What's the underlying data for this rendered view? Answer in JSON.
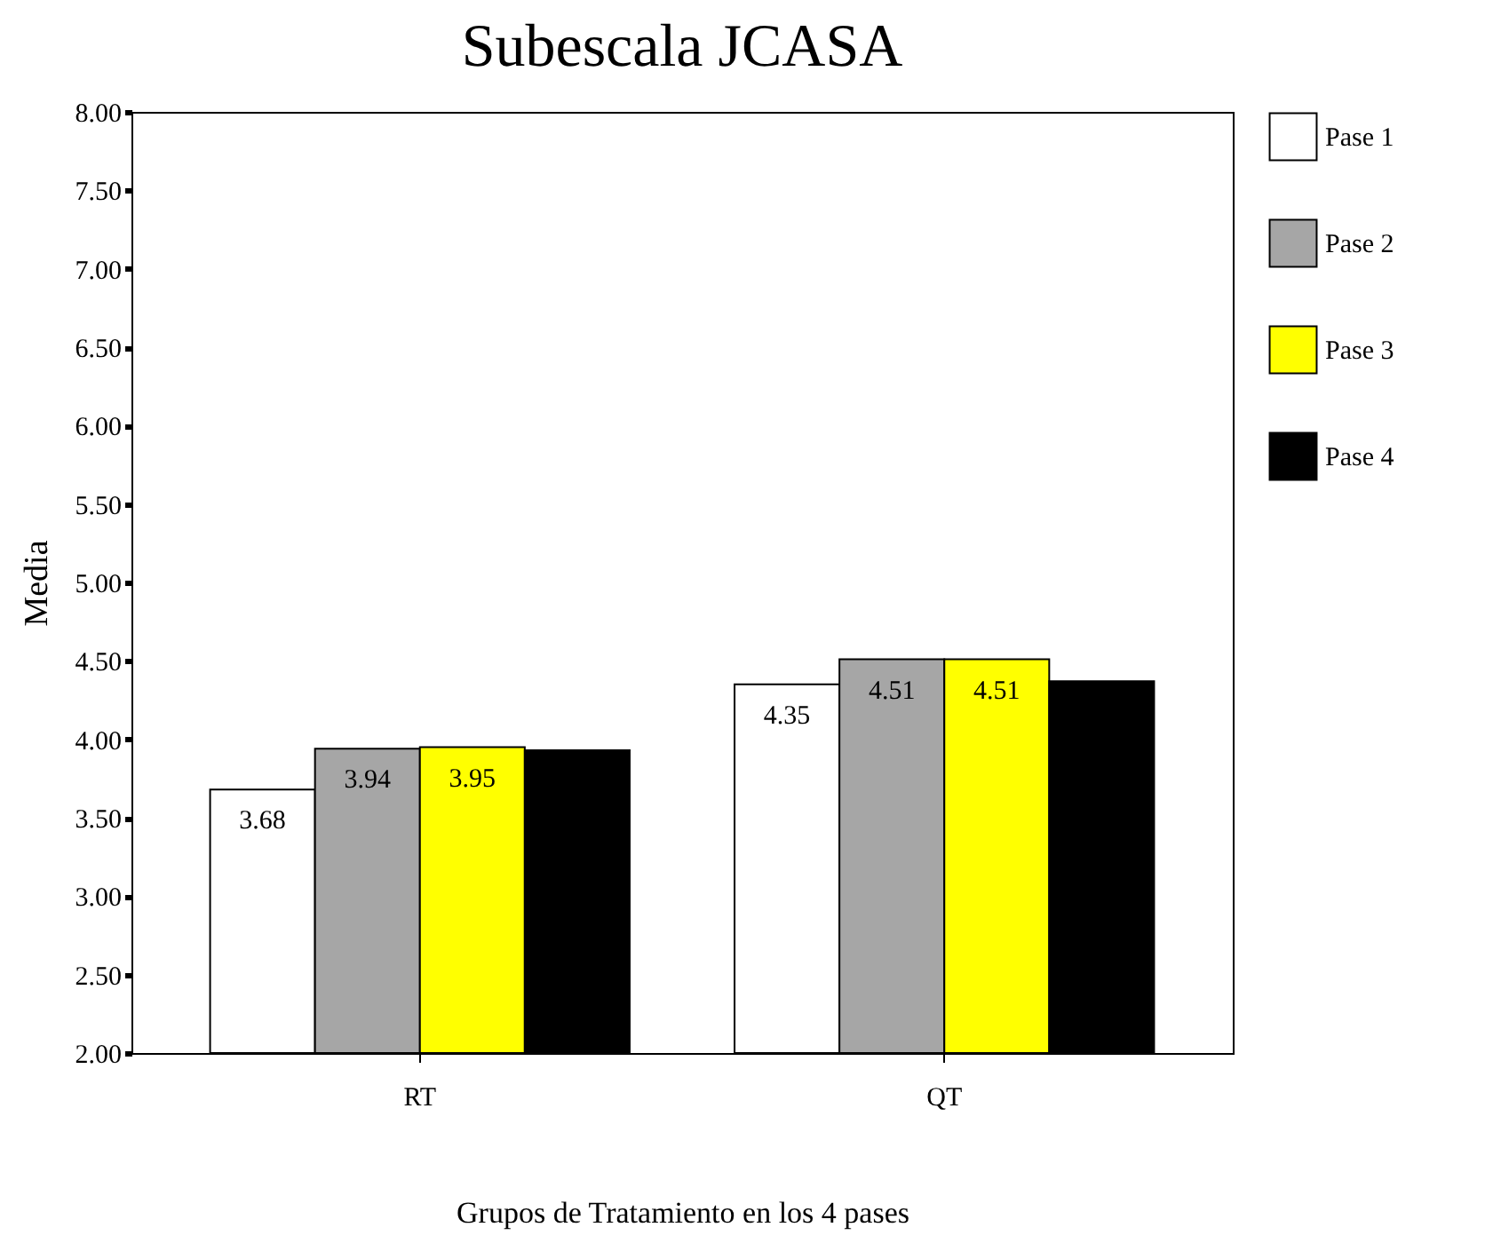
{
  "chart_data": {
    "type": "bar",
    "title": "Subescala JCASA",
    "xlabel": "Grupos de Tratamiento en los 4 pases",
    "ylabel": "Media",
    "categories": [
      "RT",
      "QT"
    ],
    "series": [
      {
        "name": "Pase 1",
        "color": "#ffffff",
        "values": [
          3.68,
          4.35
        ],
        "value_labels": [
          "3.68",
          "4.35"
        ]
      },
      {
        "name": "Pase 2",
        "color": "#a6a6a6",
        "values": [
          3.94,
          4.51
        ],
        "value_labels": [
          "3.94",
          "4.51"
        ]
      },
      {
        "name": "Pase 3",
        "color": "#ffff00",
        "values": [
          3.95,
          4.51
        ],
        "value_labels": [
          "3.95",
          "4.51"
        ]
      },
      {
        "name": "Pase 4",
        "color": "#000000",
        "values": [
          3.93,
          4.37
        ],
        "value_labels": [
          null,
          null
        ]
      }
    ],
    "ylim": [
      2,
      8
    ],
    "yticks": [
      {
        "value": 2,
        "label": "2.00"
      },
      {
        "value": 2.5,
        "label": "2.50"
      },
      {
        "value": 3,
        "label": "3.00"
      },
      {
        "value": 3.5,
        "label": "3.50"
      },
      {
        "value": 4,
        "label": "4.00"
      },
      {
        "value": 4.5,
        "label": "4.50"
      },
      {
        "value": 5,
        "label": "5.00"
      },
      {
        "value": 5.5,
        "label": "5.50"
      },
      {
        "value": 6,
        "label": "6.00"
      },
      {
        "value": 6.5,
        "label": "6.50"
      },
      {
        "value": 7,
        "label": "7.00"
      },
      {
        "value": 7.5,
        "label": "7.50"
      },
      {
        "value": 8,
        "label": "8.00"
      }
    ],
    "grid": false,
    "legend": "right"
  }
}
